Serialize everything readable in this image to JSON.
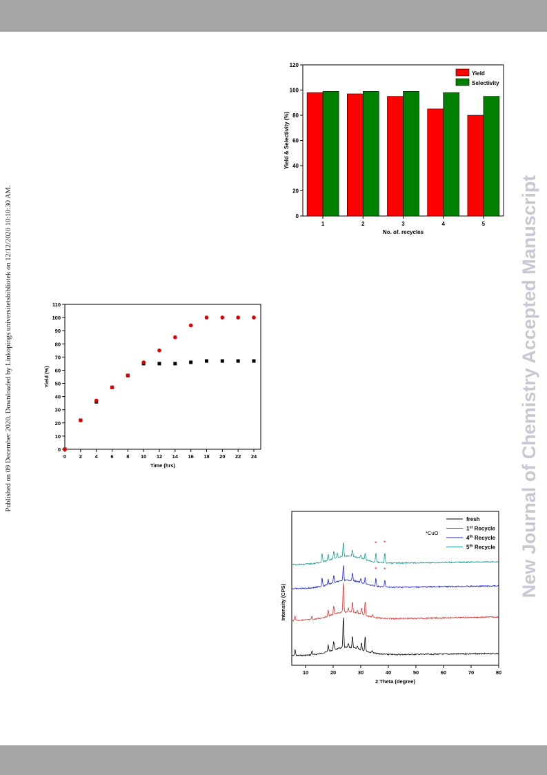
{
  "header": {},
  "footer": {},
  "side_note": "Published on 09 December 2020. Downloaded by Linkopings universitetsbibliotek on 12/12/2020 10:10:30 AM.",
  "watermark": "New Journal of Chemistry Accepted Manuscript",
  "colors": {
    "bars": "#a6a6a6",
    "yield": "#ff0000",
    "selectivity": "#008000",
    "fresh": "#000000",
    "recycle1": "#e03030",
    "recycle4": "#2020d0",
    "recycle5": "#1a9a90",
    "watermark": "#c6c9d4"
  },
  "chart_data": [
    {
      "type": "bar",
      "categories": [
        "1",
        "2",
        "3",
        "4",
        "5"
      ],
      "series": [
        {
          "name": "Yield",
          "values": [
            98,
            97,
            95,
            85,
            80
          ],
          "color": "#ff0000"
        },
        {
          "name": "Selectivity",
          "values": [
            99,
            99,
            99,
            98,
            95
          ],
          "color": "#008000"
        }
      ],
      "xlabel": "No. of. recycles",
      "ylabel": "Yield & Selectivity (%)",
      "ylim": [
        0,
        120
      ],
      "yticks": [
        "0",
        "20",
        "40",
        "60",
        "80",
        "100",
        "120"
      ],
      "legend": "top-right"
    },
    {
      "type": "scatter",
      "x": [
        0,
        2,
        4,
        6,
        8,
        10,
        12,
        14,
        16,
        18,
        20,
        22,
        24
      ],
      "series": [
        {
          "values": [
            0,
            22,
            37,
            47,
            56,
            66,
            75,
            85,
            94,
            100,
            100,
            100,
            100
          ],
          "color": "#e00000",
          "marker": "circle"
        },
        {
          "values": [
            0,
            22,
            36,
            47,
            56,
            65,
            65,
            65,
            66,
            67,
            67,
            67,
            67
          ],
          "color": "#000000",
          "marker": "square"
        }
      ],
      "xlabel": "Time (hrs)",
      "ylabel": "Yield (%)",
      "xlim": [
        0,
        24
      ],
      "ylim": [
        0,
        110
      ],
      "xticks": [
        "0",
        "2",
        "4",
        "6",
        "8",
        "10",
        "12",
        "14",
        "16",
        "18",
        "20",
        "22",
        "24"
      ],
      "yticks": [
        "0",
        "10",
        "20",
        "30",
        "40",
        "50",
        "60",
        "70",
        "80",
        "90",
        "100",
        "110"
      ],
      "legend": "none"
    },
    {
      "type": "line",
      "xlabel": "2 Theta (degree)",
      "ylabel": "Intensity (CPS)",
      "xlim": [
        5,
        80
      ],
      "xticks": [
        "10",
        "20",
        "30",
        "40",
        "50",
        "60",
        "70",
        "80"
      ],
      "legend": "top-right",
      "annotation": "*CuO",
      "cuo_peaks": [
        35.5,
        38.7
      ],
      "series": [
        {
          "name": "fresh",
          "sup": "",
          "color": "#000000",
          "offset": 0,
          "peaks": [
            [
              6.2,
              1.3
            ],
            [
              12.3,
              0.8
            ],
            [
              18.2,
              1.4
            ],
            [
              20.2,
              1.9
            ],
            [
              23.7,
              6.5
            ],
            [
              25.5,
              0.8
            ],
            [
              27.0,
              2.4
            ],
            [
              28.8,
              0.7
            ],
            [
              30.3,
              1.6
            ],
            [
              31.6,
              3.2
            ],
            [
              34.2,
              0.5
            ]
          ]
        },
        {
          "name": "1",
          "sup": "st",
          "label_suffix": " Recycle",
          "color": "#e03030",
          "offset": 1,
          "peaks": [
            [
              6.2,
              1.0
            ],
            [
              12.3,
              0.7
            ],
            [
              18.2,
              1.3
            ],
            [
              20.2,
              1.8
            ],
            [
              23.7,
              6.3
            ],
            [
              25.5,
              0.8
            ],
            [
              27.0,
              2.1
            ],
            [
              28.8,
              0.7
            ],
            [
              30.3,
              1.4
            ],
            [
              31.6,
              3.0
            ],
            [
              34.2,
              0.5
            ]
          ]
        },
        {
          "name": "4",
          "sup": "th",
          "label_suffix": " Recycle",
          "color": "#2020d0",
          "offset": 2,
          "peaks": [
            [
              16.0,
              1.8
            ],
            [
              18.2,
              1.0
            ],
            [
              20.2,
              1.6
            ],
            [
              23.7,
              3.2
            ],
            [
              27.0,
              1.6
            ],
            [
              30.0,
              0.8
            ],
            [
              31.6,
              1.3
            ],
            [
              35.5,
              1.6
            ],
            [
              38.7,
              1.5
            ]
          ]
        },
        {
          "name": "5",
          "sup": "th",
          "label_suffix": " Recycle",
          "color": "#1a9a90",
          "offset": 3,
          "peaks": [
            [
              16.0,
              1.8
            ],
            [
              18.2,
              1.2
            ],
            [
              20.2,
              1.6
            ],
            [
              21.5,
              1.0
            ],
            [
              23.7,
              3.0
            ],
            [
              27.0,
              1.5
            ],
            [
              30.0,
              0.8
            ],
            [
              31.6,
              1.4
            ],
            [
              35.5,
              2.0
            ],
            [
              38.7,
              2.1
            ]
          ]
        }
      ]
    }
  ]
}
